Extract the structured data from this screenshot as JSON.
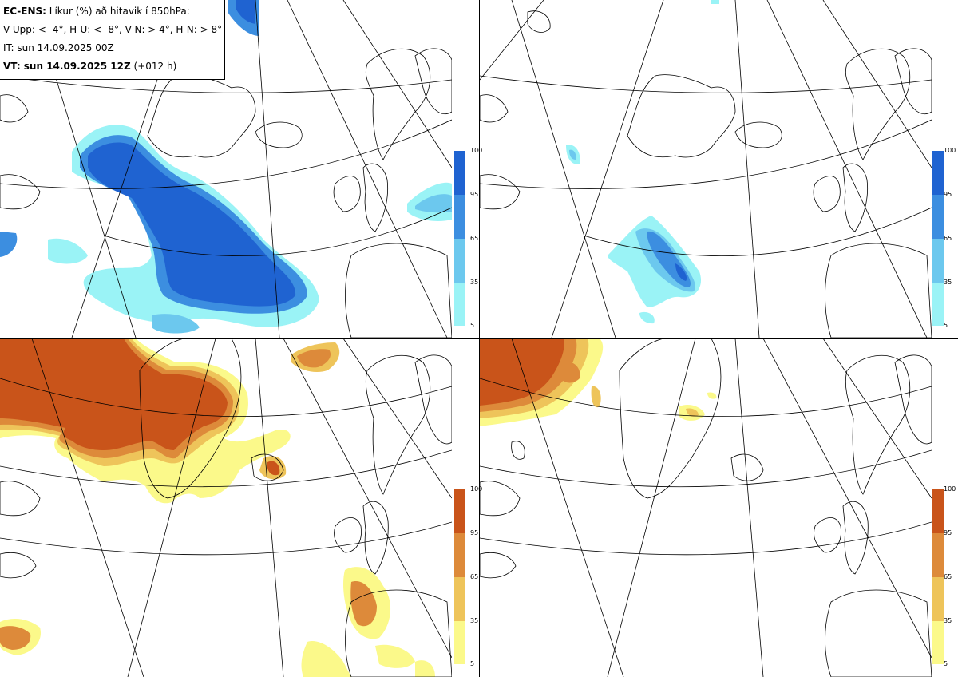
{
  "info": {
    "model": "EC-ENS:",
    "description": "Líkur (%) að hitavik í 850hPa:",
    "thresholds": "V-Upp: < -4°, H-U: < -8°, V-N: > 4°, H-N: > 8°",
    "init_time": "IT: sun 14.09.2025 00Z",
    "valid_label": "VT: sun 14.09.2025 12Z",
    "lead_time": "(+012 h)"
  },
  "colorbars": {
    "cold": {
      "ticks": [
        "100",
        "95",
        "65",
        "35",
        "5"
      ],
      "colors": [
        "#1f63d1",
        "#3c8ee0",
        "#6cc8ee",
        "#9af3f6"
      ]
    },
    "warm": {
      "ticks": [
        "100",
        "95",
        "65",
        "35",
        "5"
      ],
      "colors": [
        "#c9541a",
        "#dd8a3a",
        "#eec45a",
        "#fbf98a"
      ]
    }
  },
  "panels": [
    {
      "id": "upper-left",
      "field": "V-Upp",
      "scheme": "cold"
    },
    {
      "id": "upper-right",
      "field": "H-U",
      "scheme": "cold"
    },
    {
      "id": "lower-left",
      "field": "V-N",
      "scheme": "warm"
    },
    {
      "id": "lower-right",
      "field": "H-N",
      "scheme": "warm"
    }
  ]
}
